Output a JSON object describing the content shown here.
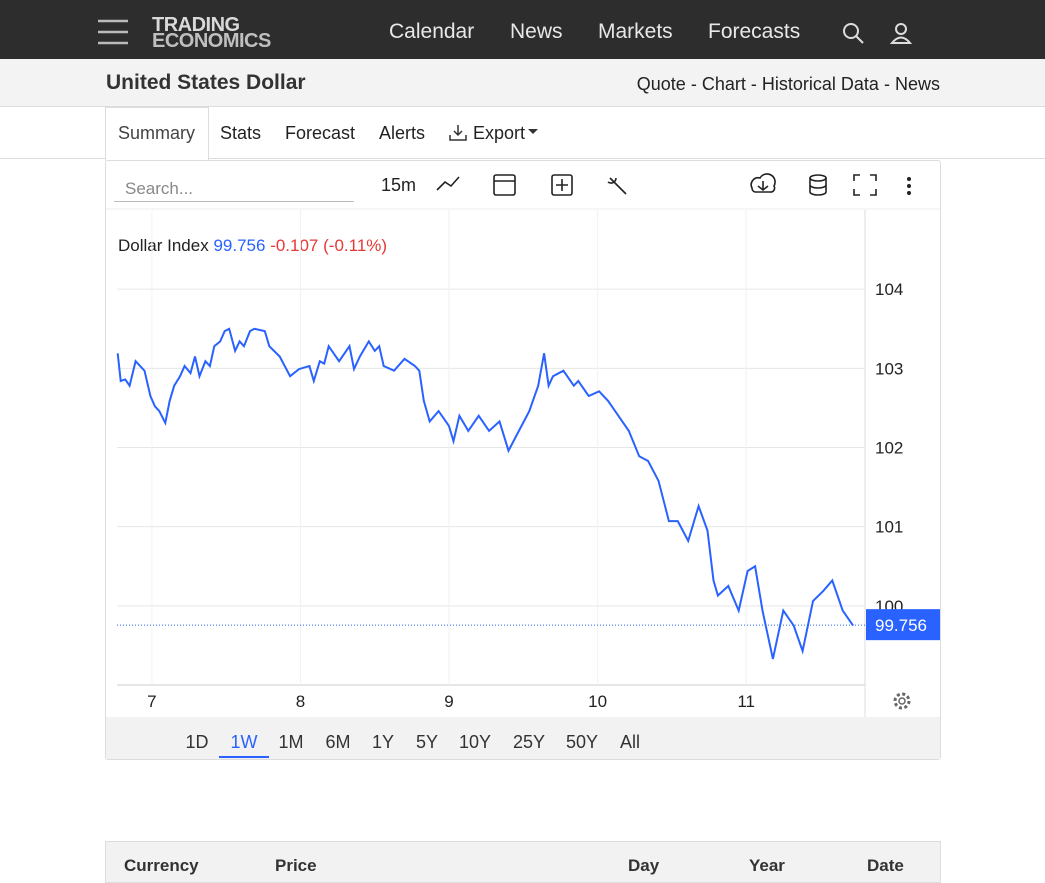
{
  "header": {
    "logo": [
      "TRADING",
      "ECONOMICS"
    ],
    "nav": [
      "Calendar",
      "News",
      "Markets",
      "Forecasts"
    ]
  },
  "page_title": "United States Dollar",
  "page_links": [
    "Quote",
    "Chart",
    "Historical Data",
    "News"
  ],
  "link_separator": "-",
  "tabs": [
    "Summary",
    "Stats",
    "Forecast",
    "Alerts",
    "Export"
  ],
  "toolbar": {
    "search_placeholder": "Search...",
    "interval": "15m"
  },
  "chart_data": {
    "type": "line",
    "series_label": "Dollar Index",
    "last_value": 99.756,
    "change": -0.107,
    "change_percent": "(-0.11%)",
    "x": [
      6.77,
      6.79,
      6.82,
      6.85,
      6.89,
      6.95,
      6.99,
      7.02,
      7.05,
      7.09,
      7.12,
      7.15,
      7.19,
      7.22,
      7.26,
      7.29,
      7.32,
      7.36,
      7.39,
      7.42,
      7.46,
      7.49,
      7.52,
      7.56,
      7.59,
      7.62,
      7.66,
      7.69,
      7.76,
      7.79,
      7.86,
      7.93,
      7.99,
      8.06,
      8.09,
      8.13,
      8.16,
      8.19,
      8.26,
      8.33,
      8.36,
      8.4,
      8.46,
      8.5,
      8.53,
      8.56,
      8.63,
      8.7,
      8.77,
      8.8,
      8.83,
      8.87,
      8.93,
      9.0,
      9.03,
      9.07,
      9.13,
      9.2,
      9.27,
      9.34,
      9.4,
      9.47,
      9.54,
      9.6,
      9.64,
      9.67,
      9.7,
      9.77,
      9.84,
      9.87,
      9.94,
      10.01,
      10.07,
      10.14,
      10.21,
      10.28,
      10.34,
      10.41,
      10.48,
      10.54,
      10.61,
      10.68,
      10.74,
      10.78,
      10.81,
      10.88,
      10.95,
      11.01,
      11.06,
      11.11,
      11.18,
      11.25,
      11.32,
      11.38,
      11.45,
      11.52,
      11.58,
      11.65,
      11.72
    ],
    "series": [
      {
        "name": "Dollar Index",
        "color": "#2962ff",
        "values": [
          103.19,
          102.84,
          102.86,
          102.78,
          103.09,
          102.97,
          102.65,
          102.52,
          102.46,
          102.31,
          102.59,
          102.78,
          102.9,
          103.03,
          102.94,
          103.15,
          102.9,
          103.09,
          103.03,
          103.28,
          103.34,
          103.47,
          103.5,
          103.22,
          103.34,
          103.28,
          103.47,
          103.5,
          103.47,
          103.28,
          103.15,
          102.9,
          102.99,
          103.03,
          102.84,
          103.09,
          103.06,
          103.28,
          103.09,
          103.28,
          102.99,
          103.15,
          103.34,
          103.22,
          103.28,
          103.03,
          102.97,
          103.12,
          103.03,
          102.97,
          102.59,
          102.33,
          102.46,
          102.27,
          102.08,
          102.4,
          102.21,
          102.4,
          102.21,
          102.33,
          101.96,
          102.21,
          102.46,
          102.78,
          103.19,
          102.78,
          102.9,
          102.97,
          102.78,
          102.84,
          102.65,
          102.71,
          102.59,
          102.4,
          102.21,
          101.89,
          101.83,
          101.58,
          101.07,
          101.07,
          100.82,
          101.26,
          100.95,
          100.32,
          100.13,
          100.25,
          99.94,
          100.44,
          100.5,
          99.94,
          99.33,
          99.94,
          99.75,
          99.43,
          100.06,
          100.19,
          100.32,
          99.94,
          99.75
        ]
      }
    ],
    "xlim": [
      6.765,
      11.8
    ],
    "xticks": [
      7,
      8,
      9,
      10,
      11
    ],
    "ylim": [
      99,
      105
    ],
    "yticks": [
      100,
      101,
      102,
      103,
      104
    ],
    "grid": true
  },
  "ranges": [
    "1D",
    "1W",
    "1M",
    "6M",
    "1Y",
    "5Y",
    "10Y",
    "25Y",
    "50Y",
    "All"
  ],
  "active_range": "1W",
  "table_header": [
    "Currency",
    "Price",
    "Day",
    "Year",
    "Date"
  ]
}
